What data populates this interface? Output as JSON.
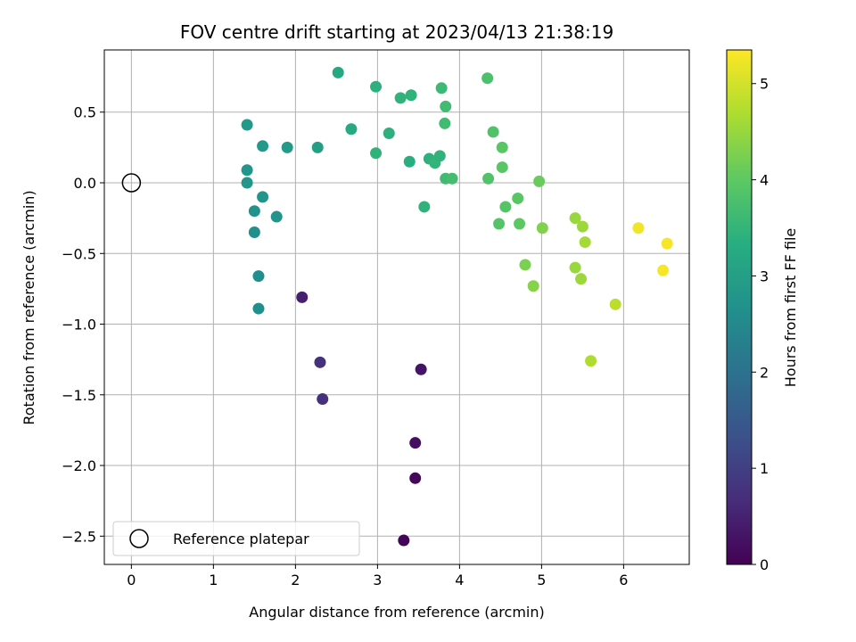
{
  "chart_data": {
    "type": "scatter",
    "title": "FOV centre drift starting at 2023/04/13 21:38:19",
    "xlabel": "Angular distance from reference (arcmin)",
    "ylabel": "Rotation from reference (arcmin)",
    "xlim": [
      -0.33,
      6.8
    ],
    "ylim": [
      -2.7,
      0.94
    ],
    "xticks": [
      "0",
      "1",
      "2",
      "3",
      "4",
      "5",
      "6"
    ],
    "yticks": [
      "0.5",
      "0.0",
      "−0.5",
      "−1.0",
      "−1.5",
      "−2.0",
      "−2.5"
    ],
    "grid": true,
    "colormap": "viridis",
    "colorbar": {
      "label": "Hours from first FF file",
      "range": [
        0,
        5.35
      ],
      "ticks": [
        "0",
        "1",
        "2",
        "3",
        "4",
        "5"
      ]
    },
    "legend": {
      "placement": "lower-left",
      "entries": [
        "Reference platepar"
      ]
    },
    "reference_point": {
      "x": 0,
      "y": 0
    },
    "points": [
      {
        "x": 3.32,
        "y": -2.53,
        "c": 0.05
      },
      {
        "x": 3.46,
        "y": -2.09,
        "c": 0.1
      },
      {
        "x": 3.46,
        "y": -1.84,
        "c": 0.2
      },
      {
        "x": 3.53,
        "y": -1.32,
        "c": 0.3
      },
      {
        "x": 2.33,
        "y": -1.53,
        "c": 0.75
      },
      {
        "x": 2.3,
        "y": -1.27,
        "c": 0.75
      },
      {
        "x": 2.08,
        "y": -0.81,
        "c": 0.45
      },
      {
        "x": 1.55,
        "y": -0.89,
        "c": 2.65
      },
      {
        "x": 1.55,
        "y": -0.66,
        "c": 2.65
      },
      {
        "x": 1.5,
        "y": -0.35,
        "c": 2.65
      },
      {
        "x": 1.5,
        "y": -0.2,
        "c": 2.7
      },
      {
        "x": 1.6,
        "y": -0.1,
        "c": 2.75
      },
      {
        "x": 1.77,
        "y": -0.24,
        "c": 2.75
      },
      {
        "x": 1.41,
        "y": 0.0,
        "c": 2.8
      },
      {
        "x": 1.41,
        "y": 0.09,
        "c": 2.8
      },
      {
        "x": 1.41,
        "y": 0.41,
        "c": 2.85
      },
      {
        "x": 1.6,
        "y": 0.26,
        "c": 2.85
      },
      {
        "x": 1.9,
        "y": 0.25,
        "c": 2.9
      },
      {
        "x": 2.27,
        "y": 0.25,
        "c": 3.0
      },
      {
        "x": 2.52,
        "y": 0.78,
        "c": 3.2
      },
      {
        "x": 2.68,
        "y": 0.38,
        "c": 3.25
      },
      {
        "x": 2.98,
        "y": 0.68,
        "c": 3.4
      },
      {
        "x": 2.98,
        "y": 0.21,
        "c": 3.45
      },
      {
        "x": 3.14,
        "y": 0.35,
        "c": 3.4
      },
      {
        "x": 3.28,
        "y": 0.6,
        "c": 3.45
      },
      {
        "x": 3.41,
        "y": 0.62,
        "c": 3.45
      },
      {
        "x": 3.39,
        "y": 0.15,
        "c": 3.35
      },
      {
        "x": 3.57,
        "y": -0.17,
        "c": 3.45
      },
      {
        "x": 3.63,
        "y": 0.17,
        "c": 3.4
      },
      {
        "x": 3.7,
        "y": 0.14,
        "c": 3.5
      },
      {
        "x": 3.76,
        "y": 0.19,
        "c": 3.45
      },
      {
        "x": 3.78,
        "y": 0.67,
        "c": 3.6
      },
      {
        "x": 3.82,
        "y": 0.42,
        "c": 3.65
      },
      {
        "x": 3.83,
        "y": 0.54,
        "c": 3.65
      },
      {
        "x": 3.83,
        "y": 0.03,
        "c": 3.65
      },
      {
        "x": 3.91,
        "y": 0.03,
        "c": 3.7
      },
      {
        "x": 4.34,
        "y": 0.74,
        "c": 3.8
      },
      {
        "x": 4.35,
        "y": 0.03,
        "c": 3.85
      },
      {
        "x": 4.41,
        "y": 0.36,
        "c": 3.85
      },
      {
        "x": 4.48,
        "y": -0.29,
        "c": 3.9
      },
      {
        "x": 4.52,
        "y": 0.25,
        "c": 3.95
      },
      {
        "x": 4.52,
        "y": 0.11,
        "c": 3.95
      },
      {
        "x": 4.56,
        "y": -0.17,
        "c": 3.9
      },
      {
        "x": 4.71,
        "y": -0.11,
        "c": 3.95
      },
      {
        "x": 4.73,
        "y": -0.29,
        "c": 4.0
      },
      {
        "x": 4.97,
        "y": 0.01,
        "c": 4.1
      },
      {
        "x": 4.8,
        "y": -0.58,
        "c": 4.25
      },
      {
        "x": 4.9,
        "y": -0.73,
        "c": 4.35
      },
      {
        "x": 5.01,
        "y": -0.32,
        "c": 4.3
      },
      {
        "x": 5.41,
        "y": -0.25,
        "c": 4.5
      },
      {
        "x": 5.5,
        "y": -0.31,
        "c": 4.55
      },
      {
        "x": 5.53,
        "y": -0.42,
        "c": 4.6
      },
      {
        "x": 5.41,
        "y": -0.6,
        "c": 4.5
      },
      {
        "x": 5.48,
        "y": -0.68,
        "c": 4.55
      },
      {
        "x": 5.6,
        "y": -1.26,
        "c": 4.7
      },
      {
        "x": 5.9,
        "y": -0.86,
        "c": 4.8
      },
      {
        "x": 6.18,
        "y": -0.32,
        "c": 5.25
      },
      {
        "x": 6.48,
        "y": -0.62,
        "c": 5.3
      },
      {
        "x": 6.53,
        "y": -0.43,
        "c": 5.3
      }
    ]
  }
}
